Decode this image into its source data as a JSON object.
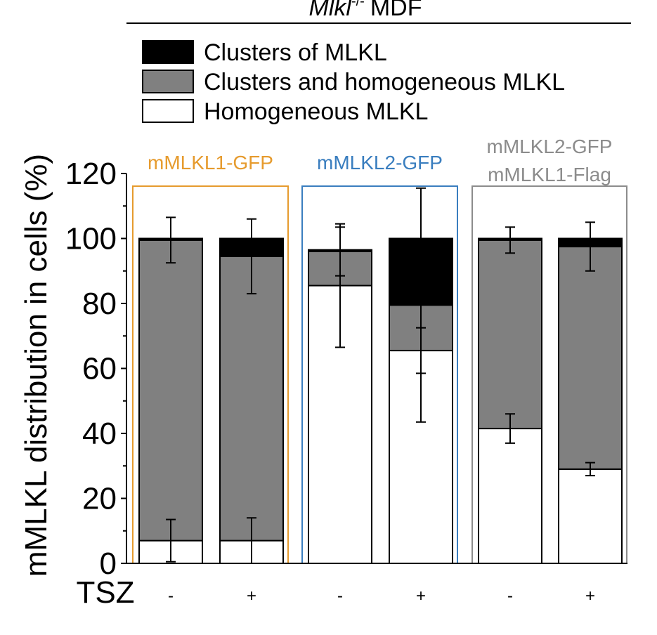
{
  "header": {
    "title_italic": "Mlkl",
    "title_superscript": "-/-",
    "title_rest": "MDF"
  },
  "colors": {
    "clusters": "#000000",
    "mixed": "#808080",
    "homogeneous": "#ffffff",
    "group1": "#e69b2e",
    "group2": "#3a7ebf",
    "group3": "#8c8c8c"
  },
  "chart_data": {
    "type": "bar",
    "stacked": true,
    "ylabel": "mMLKL distribution in cells (%)",
    "ylim": [
      0,
      120
    ],
    "yticks": [
      0,
      20,
      40,
      60,
      80,
      100,
      120
    ],
    "legend_position": "top",
    "x_row_label": "TSZ",
    "groups": [
      {
        "label_lines": [
          "mMLKL1-GFP"
        ],
        "color": "#e69b2e"
      },
      {
        "label_lines": [
          "mMLKL2-GFP"
        ],
        "color": "#3a7ebf"
      },
      {
        "label_lines": [
          "mMLKL2-GFP",
          "mMLKL1-Flag"
        ],
        "color": "#8c8c8c"
      }
    ],
    "categories": [
      "-",
      "+",
      "-",
      "+",
      "-",
      "+"
    ],
    "category_group": [
      0,
      0,
      1,
      1,
      2,
      2
    ],
    "series": [
      {
        "name": "Homogeneous MLKL",
        "color": "#ffffff",
        "values": [
          7,
          7,
          85.5,
          65.5,
          41.5,
          29
        ],
        "errors": [
          6.5,
          7,
          19,
          7,
          4.5,
          2
        ]
      },
      {
        "name": "Clusters and homogeneous MLKL",
        "color": "#808080",
        "values": [
          92.5,
          87.5,
          10.5,
          14,
          58,
          68.5
        ],
        "errors": [
          7,
          11.5,
          7.5,
          36,
          4,
          7.5
        ]
      },
      {
        "name": "Clusters of MLKL",
        "color": "#000000",
        "values": [
          0.5,
          5.5,
          0.5,
          20.5,
          0.5,
          2.5
        ],
        "errors": [
          0,
          0,
          0,
          0,
          0,
          0
        ]
      }
    ]
  }
}
